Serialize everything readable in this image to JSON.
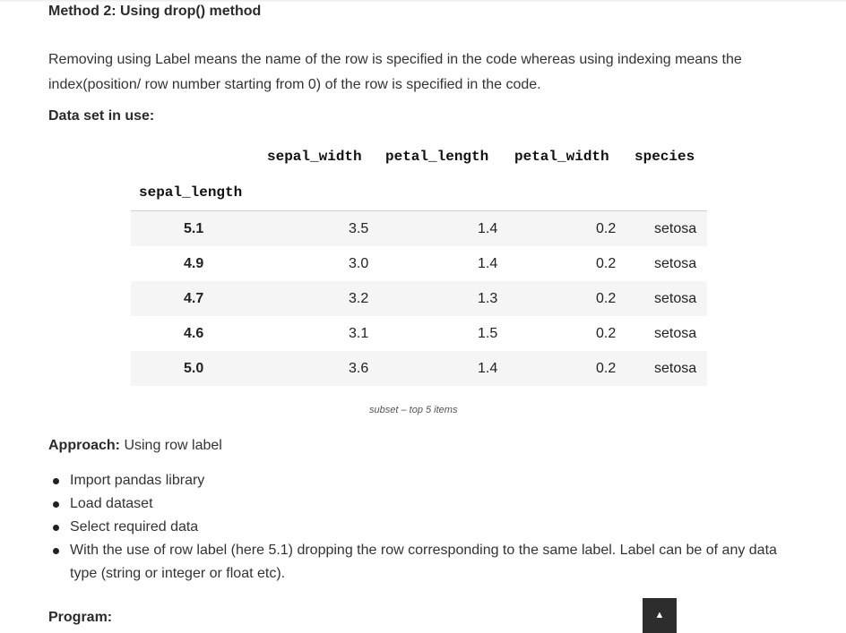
{
  "heading": "Method 2: Using drop() method",
  "paragraph": "Removing using Label means the name of the row is specified in the code whereas using indexing means the index(position/ row number starting from 0) of the row is specified in the code.",
  "dataset_label": "Data set in use:",
  "table": {
    "index_name": "sepal_length",
    "columns": [
      "sepal_width",
      "petal_length",
      "petal_width",
      "species"
    ],
    "rows": [
      {
        "index": "5.1",
        "values": [
          "3.5",
          "1.4",
          "0.2",
          "setosa"
        ]
      },
      {
        "index": "4.9",
        "values": [
          "3.0",
          "1.4",
          "0.2",
          "setosa"
        ]
      },
      {
        "index": "4.7",
        "values": [
          "3.2",
          "1.3",
          "0.2",
          "setosa"
        ]
      },
      {
        "index": "4.6",
        "values": [
          "3.1",
          "1.5",
          "0.2",
          "setosa"
        ]
      },
      {
        "index": "5.0",
        "values": [
          "3.6",
          "1.4",
          "0.2",
          "setosa"
        ]
      }
    ]
  },
  "caption": "subset – top 5 items",
  "approach": {
    "label": "Approach:",
    "text": " Using row label"
  },
  "bullets": [
    "Import pandas library",
    "Load dataset",
    "Select required data",
    "With the use of row label (here 5.1) dropping the row corresponding to the same label. Label can be of any data type (string or integer or float etc)."
  ],
  "program_label": "Program:",
  "scroll_top_icon": "▲"
}
